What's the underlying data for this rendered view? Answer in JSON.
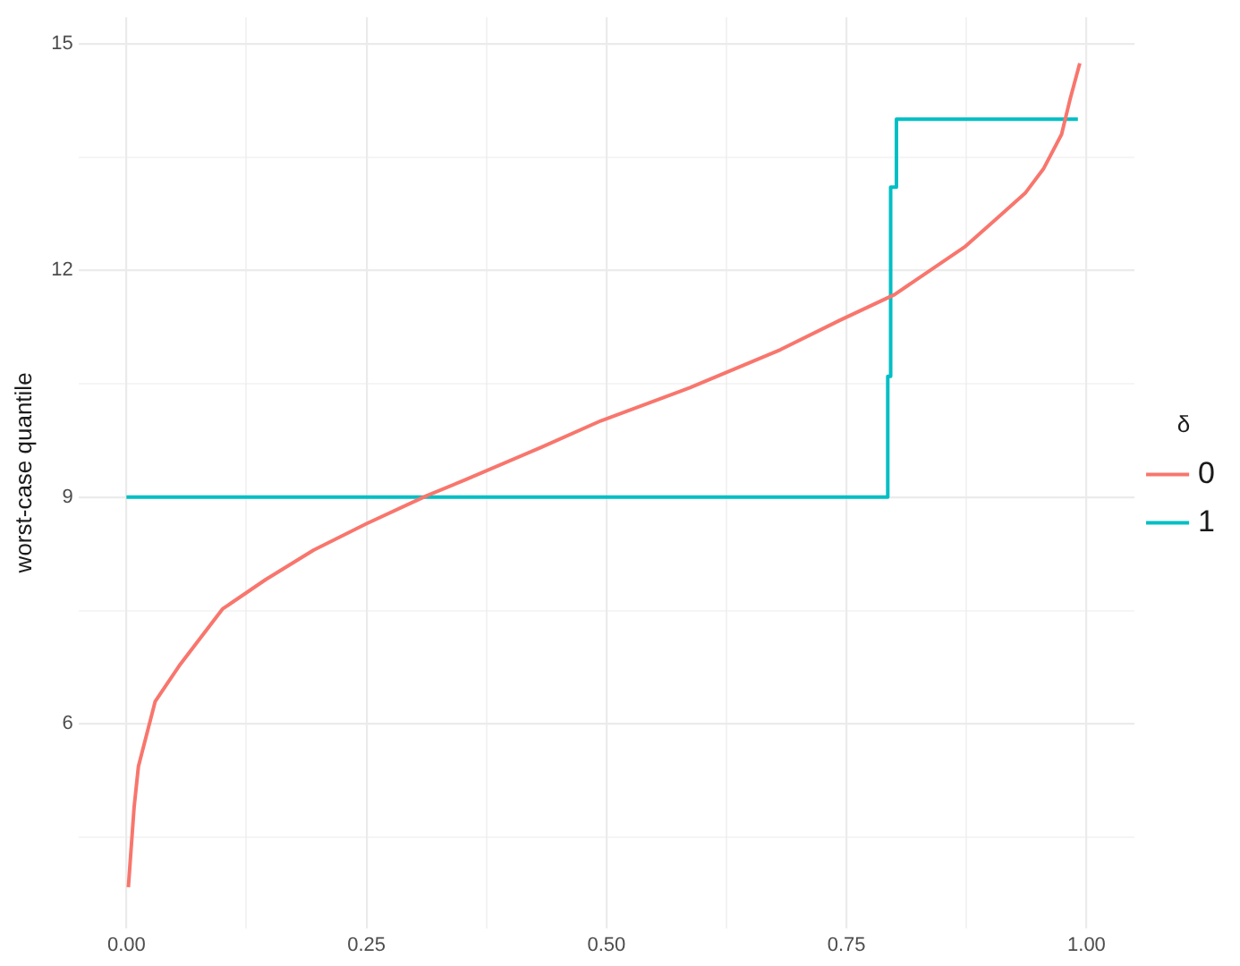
{
  "chart_data": {
    "type": "line",
    "ylabel": "worst-case quantile",
    "legend_title": "δ",
    "legend": "right",
    "grid": true,
    "marker": "none",
    "xlim": [
      -0.05,
      1.05
    ],
    "ylim": [
      3.3,
      15.35
    ],
    "xticks": [
      {
        "value": 0,
        "label": "0.00"
      },
      {
        "value": 0.125,
        "label": null
      },
      {
        "value": 0.25,
        "label": "0.25"
      },
      {
        "value": 0.375,
        "label": null
      },
      {
        "value": 0.5,
        "label": "0.50"
      },
      {
        "value": 0.625,
        "label": null
      },
      {
        "value": 0.75,
        "label": "0.75"
      },
      {
        "value": 0.875,
        "label": null
      },
      {
        "value": 1,
        "label": "1.00"
      }
    ],
    "yticks": [
      {
        "value": 4.5,
        "label": null
      },
      6,
      {
        "value": 7.5,
        "label": null
      },
      9,
      {
        "value": 10.5,
        "label": null
      },
      12,
      {
        "value": 13.5,
        "label": null
      },
      15
    ],
    "series": [
      {
        "name": "0",
        "type": "line",
        "color": "#f8766d",
        "x": [
          0.002,
          0.008,
          0.0125,
          0.03,
          0.055,
          0.1,
          0.145,
          0.195,
          0.25,
          0.313,
          0.353,
          0.432,
          0.494,
          0.587,
          0.681,
          0.743,
          0.8,
          0.874,
          0.905,
          0.936,
          0.955,
          0.974,
          0.983,
          0.993
        ],
        "values": [
          3.84,
          4.9,
          5.44,
          6.3,
          6.77,
          7.52,
          7.91,
          8.3,
          8.65,
          9.02,
          9.23,
          9.66,
          10.01,
          10.45,
          10.95,
          11.34,
          11.68,
          12.32,
          12.67,
          13.02,
          13.34,
          13.8,
          14.27,
          14.74
        ]
      },
      {
        "name": "1",
        "type": "step",
        "color": "#00bfc4",
        "x": [
          0,
          0.793,
          0.796,
          0.802,
          0.991
        ],
        "values": [
          9,
          10.6,
          13.1,
          14,
          14
        ]
      }
    ]
  }
}
